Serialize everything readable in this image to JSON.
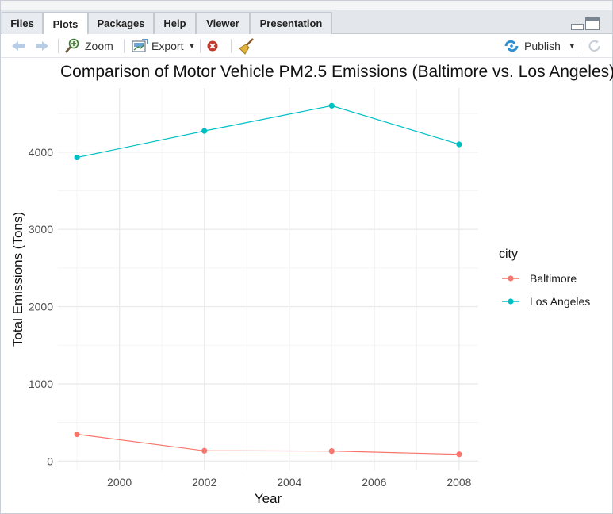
{
  "tabs": [
    {
      "label": "Files",
      "active": false
    },
    {
      "label": "Plots",
      "active": true
    },
    {
      "label": "Packages",
      "active": false
    },
    {
      "label": "Help",
      "active": false
    },
    {
      "label": "Viewer",
      "active": false
    },
    {
      "label": "Presentation",
      "active": false
    }
  ],
  "toolbar": {
    "zoom_label": "Zoom",
    "export_label": "Export",
    "publish_label": "Publish"
  },
  "icons": [
    "arrow-back-icon",
    "arrow-forward-icon",
    "zoom-icon",
    "export-icon",
    "remove-plot-icon",
    "broom-icon",
    "publish-icon",
    "refresh-icon",
    "minimize-icon",
    "maximize-icon"
  ],
  "chart_data": {
    "type": "line",
    "title": "Comparison of Motor Vehicle PM2.5 Emissions (Baltimore vs. Los Angeles)",
    "xlabel": "Year",
    "ylabel": "Total Emissions (Tons)",
    "x": [
      1999,
      2002,
      2005,
      2008
    ],
    "xlim": [
      1998.55,
      2008.45
    ],
    "ylim": [
      -120,
      4830
    ],
    "xticks": [
      2000,
      2002,
      2004,
      2006,
      2008
    ],
    "yticks": [
      0,
      1000,
      2000,
      3000,
      4000
    ],
    "grid": true,
    "legend_title": "city",
    "legend_position": "right",
    "series": [
      {
        "name": "Baltimore",
        "color": "#f8766d",
        "values": [
          347,
          134,
          130,
          88
        ]
      },
      {
        "name": "Los Angeles",
        "color": "#00bfc4",
        "values": [
          3931,
          4274,
          4601,
          4101
        ]
      }
    ]
  }
}
